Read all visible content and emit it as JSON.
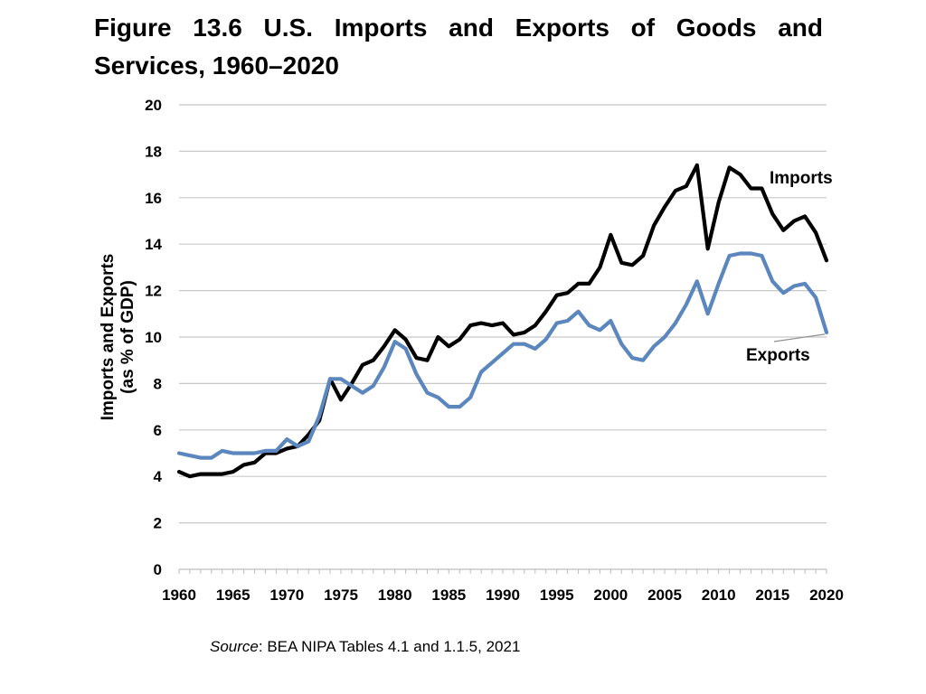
{
  "title": "Figure 13.6 U.S. Imports and Exports of Goods and Services, 1960–2020",
  "source": {
    "label": "Source",
    "text": ": BEA NIPA Tables 4.1 and 1.1.5, 2021"
  },
  "chart_data": {
    "type": "line",
    "title": "Figure 13.6 U.S. Imports and Exports of Goods and Services, 1960–2020",
    "xlabel": "",
    "ylabel": "Imports and Exports (as % of GDP)",
    "ylabel_lines": [
      "Imports and Exports",
      "(as % of GDP)"
    ],
    "xlim": [
      1960,
      2020
    ],
    "ylim": [
      0,
      20
    ],
    "yticks": [
      0,
      2,
      4,
      6,
      8,
      10,
      12,
      14,
      16,
      18,
      20
    ],
    "xticks": [
      1960,
      1965,
      1970,
      1975,
      1980,
      1985,
      1990,
      1995,
      2000,
      2005,
      2010,
      2015,
      2020
    ],
    "grid": true,
    "legend": "direct labels at right",
    "x": [
      1960,
      1961,
      1962,
      1963,
      1964,
      1965,
      1966,
      1967,
      1968,
      1969,
      1970,
      1971,
      1972,
      1973,
      1974,
      1975,
      1976,
      1977,
      1978,
      1979,
      1980,
      1981,
      1982,
      1983,
      1984,
      1985,
      1986,
      1987,
      1988,
      1989,
      1990,
      1991,
      1992,
      1993,
      1994,
      1995,
      1996,
      1997,
      1998,
      1999,
      2000,
      2001,
      2002,
      2003,
      2004,
      2005,
      2006,
      2007,
      2008,
      2009,
      2010,
      2011,
      2012,
      2013,
      2014,
      2015,
      2016,
      2017,
      2018,
      2019,
      2020
    ],
    "series": [
      {
        "name": "Imports",
        "color": "#000000",
        "values": [
          4.2,
          4.0,
          4.1,
          4.1,
          4.1,
          4.2,
          4.5,
          4.6,
          5.0,
          5.0,
          5.2,
          5.3,
          5.8,
          6.4,
          8.2,
          7.3,
          8.0,
          8.8,
          9.0,
          9.6,
          10.3,
          9.9,
          9.1,
          9.0,
          10.0,
          9.6,
          9.9,
          10.5,
          10.6,
          10.5,
          10.6,
          10.1,
          10.2,
          10.5,
          11.1,
          11.8,
          11.9,
          12.3,
          12.3,
          13.0,
          14.4,
          13.2,
          13.1,
          13.5,
          14.8,
          15.6,
          16.3,
          16.5,
          17.4,
          13.8,
          15.8,
          17.3,
          17.0,
          16.4,
          16.4,
          15.3,
          14.6,
          15.0,
          15.2,
          14.5,
          13.3
        ]
      },
      {
        "name": "Exports",
        "color": "#5B87BE",
        "values": [
          5.0,
          4.9,
          4.8,
          4.8,
          5.1,
          5.0,
          5.0,
          5.0,
          5.1,
          5.1,
          5.6,
          5.3,
          5.5,
          6.6,
          8.2,
          8.2,
          7.9,
          7.6,
          7.9,
          8.7,
          9.8,
          9.5,
          8.4,
          7.6,
          7.4,
          7.0,
          7.0,
          7.4,
          8.5,
          8.9,
          9.3,
          9.7,
          9.7,
          9.5,
          9.9,
          10.6,
          10.7,
          11.1,
          10.5,
          10.3,
          10.7,
          9.7,
          9.1,
          9.0,
          9.6,
          10.0,
          10.6,
          11.4,
          12.4,
          11.0,
          12.3,
          13.5,
          13.6,
          13.6,
          13.5,
          12.4,
          11.9,
          12.2,
          12.3,
          11.7,
          10.2
        ]
      }
    ]
  }
}
